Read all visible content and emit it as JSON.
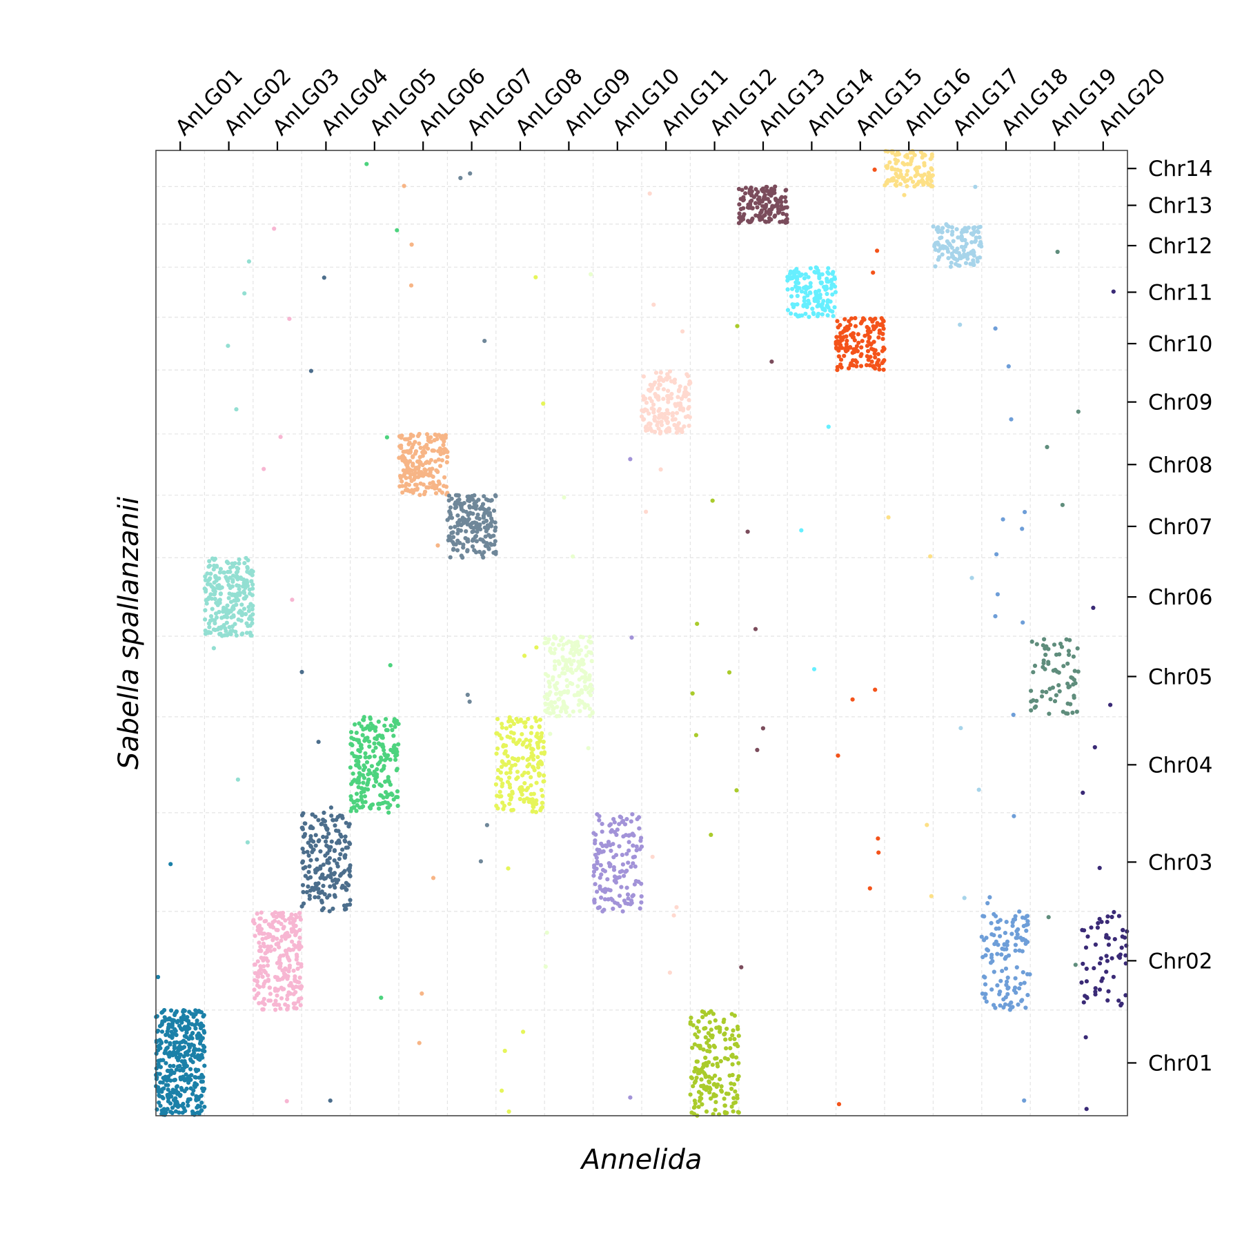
{
  "chart_data": {
    "type": "scatter",
    "xlabel": "Annelida",
    "ylabel": "Sabella spallanzanii",
    "grid": true,
    "x_categories": [
      "AnLG01",
      "AnLG02",
      "AnLG03",
      "AnLG04",
      "AnLG05",
      "AnLG06",
      "AnLG07",
      "AnLG08",
      "AnLG09",
      "AnLG10",
      "AnLG11",
      "AnLG12",
      "AnLG13",
      "AnLG14",
      "AnLG15",
      "AnLG16",
      "AnLG17",
      "AnLG18",
      "AnLG19",
      "AnLG20"
    ],
    "y_categories": [
      "Chr01",
      "Chr02",
      "Chr03",
      "Chr04",
      "Chr05",
      "Chr06",
      "Chr07",
      "Chr08",
      "Chr09",
      "Chr10",
      "Chr11",
      "Chr12",
      "Chr13",
      "Chr14"
    ],
    "colors": {
      "AnLG01": "#1b80a8",
      "AnLG02": "#93dfd2",
      "AnLG03": "#f7b6d2",
      "AnLG04": "#4c6e8c",
      "AnLG05": "#4dd37e",
      "AnLG06": "#f7b586",
      "AnLG07": "#6f8799",
      "AnLG08": "#e6f55a",
      "AnLG09": "#e9ffcf",
      "AnLG10": "#a293d8",
      "AnLG11": "#ffd9cf",
      "AnLG12": "#aacb2b",
      "AnLG13": "#7b4c5c",
      "AnLG14": "#66efff",
      "AnLG15": "#f4531a",
      "AnLG16": "#fde086",
      "AnLG17": "#a7d4ea",
      "AnLG18": "#6e9ed8",
      "AnLG19": "#5f8d7c",
      "AnLG20": "#3a2a76"
    },
    "blocks": [
      {
        "x": "AnLG01",
        "y": "Chr01",
        "n": 380
      },
      {
        "x": "AnLG02",
        "y": "Chr06",
        "n": 240
      },
      {
        "x": "AnLG03",
        "y": "Chr02",
        "n": 260
      },
      {
        "x": "AnLG04",
        "y": "Chr03",
        "n": 200
      },
      {
        "x": "AnLG05",
        "y": "Chr04",
        "n": 220
      },
      {
        "x": "AnLG06",
        "y": "Chr08",
        "n": 200
      },
      {
        "x": "AnLG07",
        "y": "Chr07",
        "n": 190
      },
      {
        "x": "AnLG08",
        "y": "Chr04",
        "n": 190
      },
      {
        "x": "AnLG09",
        "y": "Chr05",
        "n": 190
      },
      {
        "x": "AnLG10",
        "y": "Chr03",
        "n": 150
      },
      {
        "x": "AnLG11",
        "y": "Chr09",
        "n": 160
      },
      {
        "x": "AnLG12",
        "y": "Chr01",
        "n": 180
      },
      {
        "x": "AnLG13",
        "y": "Chr13",
        "n": 150
      },
      {
        "x": "AnLG14",
        "y": "Chr11",
        "n": 150
      },
      {
        "x": "AnLG15",
        "y": "Chr10",
        "n": 150
      },
      {
        "x": "AnLG16",
        "y": "Chr14",
        "n": 110
      },
      {
        "x": "AnLG17",
        "y": "Chr12",
        "n": 120
      },
      {
        "x": "AnLG18",
        "y": "Chr02",
        "n": 120
      },
      {
        "x": "AnLG19",
        "y": "Chr05",
        "n": 70
      },
      {
        "x": "AnLG20",
        "y": "Chr02",
        "n": 60
      }
    ]
  }
}
